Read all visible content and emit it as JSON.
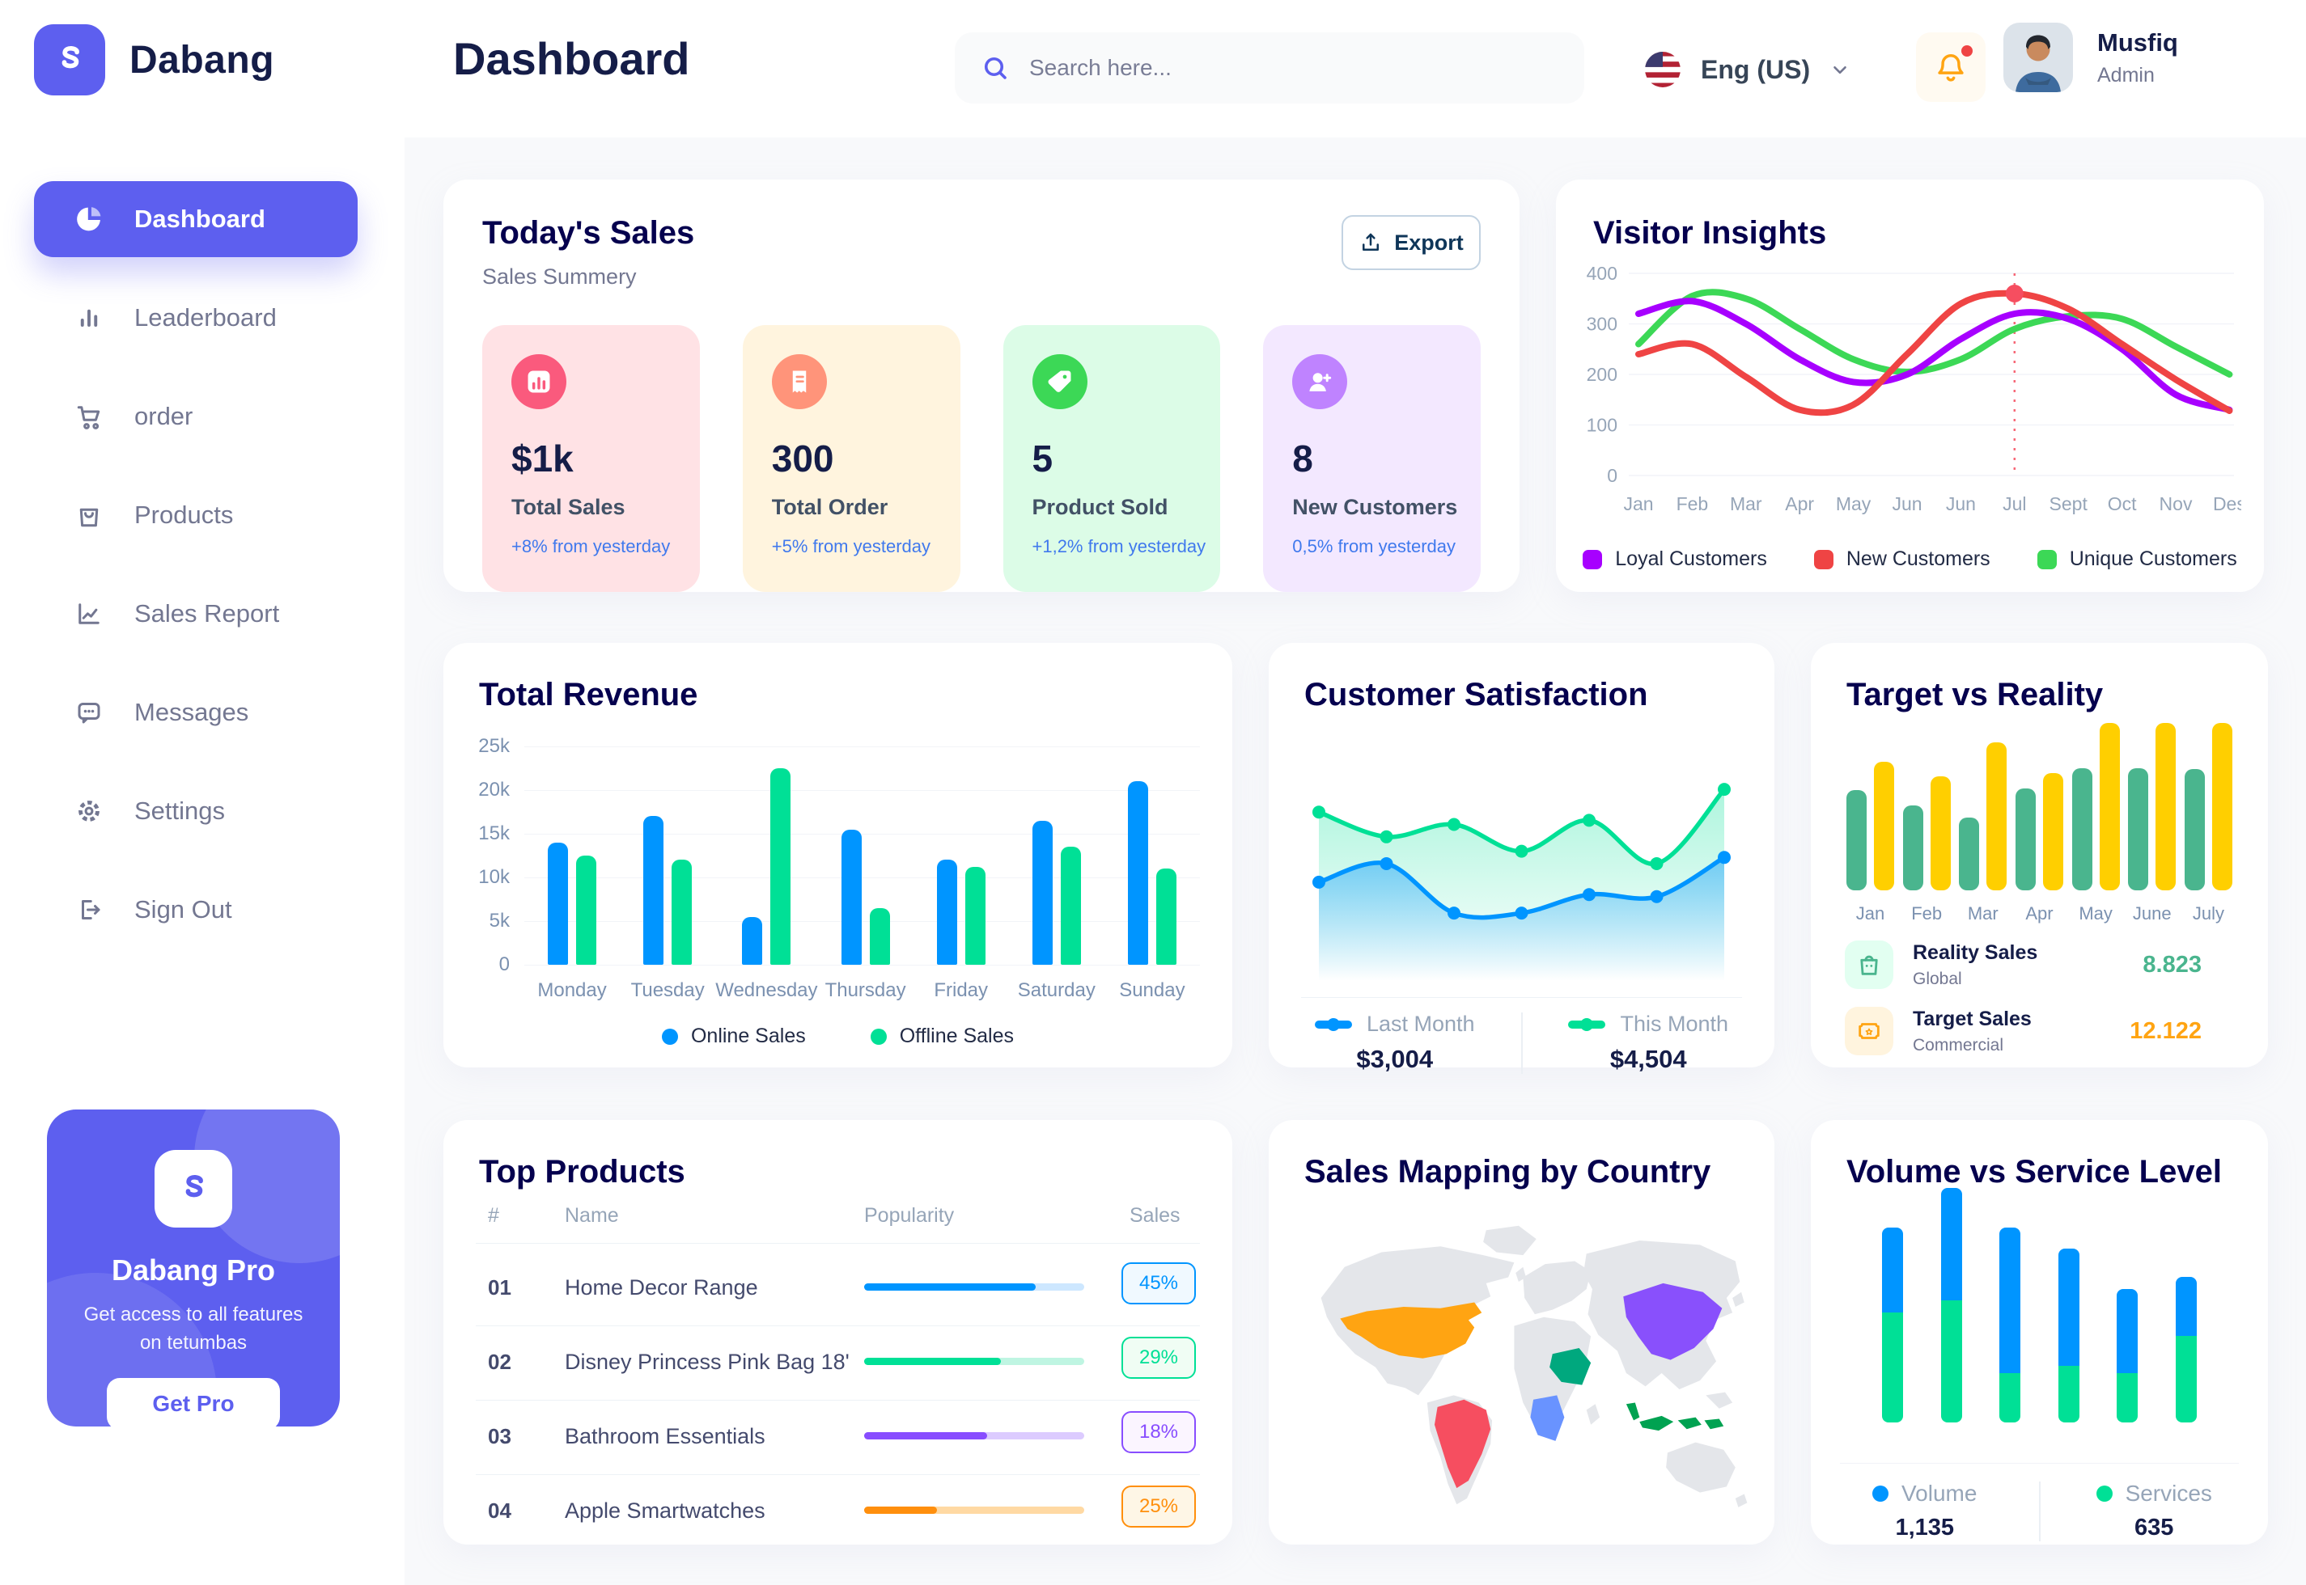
{
  "sidebar": {
    "logo_text": "Dabang",
    "items": [
      {
        "label": "Dashboard",
        "active": true
      },
      {
        "label": "Leaderboard"
      },
      {
        "label": "order"
      },
      {
        "label": "Products"
      },
      {
        "label": "Sales Report"
      },
      {
        "label": "Messages"
      },
      {
        "label": "Settings"
      },
      {
        "label": "Sign Out"
      }
    ],
    "promo": {
      "title": "Dabang Pro",
      "subtitle": "Get access to all features on tetumbas",
      "button": "Get Pro"
    }
  },
  "header": {
    "title": "Dashboard",
    "search_placeholder": "Search here...",
    "language": "Eng (US)",
    "user": {
      "name": "Musfiq",
      "role": "Admin"
    }
  },
  "today": {
    "title": "Today's Sales",
    "subtitle": "Sales Summery",
    "export_label": "Export",
    "cards": [
      {
        "value": "$1k",
        "label": "Total Sales",
        "delta": "+8% from yesterday",
        "bg": "#FFE2E5",
        "icon_bg": "#FA5A7D",
        "icon": "bar-chart"
      },
      {
        "value": "300",
        "label": "Total Order",
        "delta": "+5% from yesterday",
        "bg": "#FFF4DE",
        "icon_bg": "#FF947A",
        "icon": "receipt"
      },
      {
        "value": "5",
        "label": "Product Sold",
        "delta": "+1,2% from yesterday",
        "bg": "#DCFCE7",
        "icon_bg": "#3CD856",
        "icon": "tag"
      },
      {
        "value": "8",
        "label": "New Customers",
        "delta": "0,5% from yesterday",
        "bg": "#F3E8FF",
        "icon_bg": "#BF83FF",
        "icon": "user-plus"
      }
    ]
  },
  "visitor_insights": {
    "title": "Visitor Insights",
    "type": "line",
    "months": [
      "Jan",
      "Feb",
      "Mar",
      "Apr",
      "May",
      "Jun",
      "Jun",
      "Jul",
      "Sept",
      "Oct",
      "Nov",
      "Des"
    ],
    "y_ticks": [
      0,
      100,
      200,
      300,
      400
    ],
    "ylim": [
      0,
      400
    ],
    "marker": {
      "month_index": 7,
      "value": 360,
      "color": "#F64E60"
    },
    "series": [
      {
        "name": "Loyal Customers",
        "color": "#A700FF",
        "values": [
          320,
          345,
          300,
          230,
          185,
          200,
          270,
          320,
          310,
          250,
          160,
          130
        ]
      },
      {
        "name": "New Customers",
        "color": "#EF4444",
        "values": [
          240,
          260,
          195,
          130,
          140,
          240,
          340,
          360,
          330,
          260,
          190,
          128
        ]
      },
      {
        "name": "Unique Customers",
        "color": "#3CD856",
        "values": [
          260,
          355,
          350,
          290,
          230,
          205,
          230,
          290,
          315,
          310,
          255,
          200
        ]
      }
    ]
  },
  "total_revenue": {
    "title": "Total Revenue",
    "type": "bar",
    "days": [
      "Monday",
      "Tuesday",
      "Wednesday",
      "Thursday",
      "Friday",
      "Saturday",
      "Sunday"
    ],
    "y_ticks": [
      "0",
      "5k",
      "10k",
      "15k",
      "20k",
      "25k"
    ],
    "ylim": [
      0,
      25
    ],
    "series": [
      {
        "name": "Online Sales",
        "color": "#0095FF",
        "values": [
          14,
          17,
          5.5,
          15.5,
          12,
          16.5,
          21
        ]
      },
      {
        "name": "Offline Sales",
        "color": "#00E096",
        "values": [
          12.5,
          12,
          22.5,
          6.5,
          11.2,
          13.5,
          11
        ]
      }
    ]
  },
  "customer_satisfaction": {
    "title": "Customer Satisfaction",
    "type": "area",
    "series": [
      {
        "name": "Last Month",
        "color": "#0095FF",
        "total": "$3,004",
        "values": [
          42,
          51,
          27,
          27,
          36,
          35,
          54
        ]
      },
      {
        "name": "This Month",
        "color": "#00E096",
        "total": "$4,504",
        "values": [
          76,
          64,
          70,
          57,
          72,
          51,
          87
        ]
      }
    ]
  },
  "target_vs_reality": {
    "title": "Target vs Reality",
    "type": "bar",
    "months": [
      "Jan",
      "Feb",
      "Mar",
      "Apr",
      "May",
      "June",
      "July"
    ],
    "ylim": [
      0,
      14
    ],
    "series": [
      {
        "name": "Reality Sales",
        "tag": "Global",
        "color": "#4AB58E",
        "tile_bg": "#E2FFF1",
        "value_label": "8.823",
        "values": [
          8.3,
          7,
          6,
          8.4,
          10.1,
          10.1,
          10
        ]
      },
      {
        "name": "Target Sales",
        "tag": "Commercial",
        "color": "#FFCF00",
        "value_color": "#FFA412",
        "tile_bg": "#FFF4DE",
        "value_label": "12.122",
        "values": [
          10.6,
          9.4,
          12.2,
          9.7,
          13.8,
          13.8,
          13.8
        ]
      }
    ]
  },
  "top_products": {
    "title": "Top Products",
    "columns": [
      "#",
      "Name",
      "Popularity",
      "Sales"
    ],
    "rows": [
      {
        "id": "01",
        "name": "Home Decor Range",
        "popularity_pct": 78,
        "sales": "45%",
        "color": "#0095FF",
        "track": "#CDE7FF",
        "badge_bg": "#F0F9FF"
      },
      {
        "id": "02",
        "name": "Disney Princess Pink Bag 18'",
        "popularity_pct": 62,
        "sales": "29%",
        "color": "#00E096",
        "track": "#BFF5E2",
        "badge_bg": "#F0FDF4"
      },
      {
        "id": "03",
        "name": "Bathroom Essentials",
        "popularity_pct": 56,
        "sales": "18%",
        "color": "#884DFF",
        "track": "#DCCBFF",
        "badge_bg": "#FBF5FF"
      },
      {
        "id": "04",
        "name": "Apple Smartwatches",
        "popularity_pct": 33,
        "sales": "25%",
        "color": "#FF8F0D",
        "track": "#FFD9A3",
        "badge_bg": "#FEF6E6"
      }
    ]
  },
  "sales_mapping": {
    "title": "Sales Mapping by Country",
    "land_color": "#E4E6EA",
    "countries": [
      {
        "key": "usa",
        "name": "United States",
        "color": "#FFA412"
      },
      {
        "key": "brazil",
        "name": "Brazil",
        "color": "#F64E60"
      },
      {
        "key": "china",
        "name": "China",
        "color": "#8950FC"
      },
      {
        "key": "saudi",
        "name": "Saudi Arabia",
        "color": "#00A87E"
      },
      {
        "key": "drc",
        "name": "DR Congo",
        "color": "#6993FF"
      },
      {
        "key": "indonesia",
        "name": "Indonesia",
        "color": "#00A251"
      }
    ]
  },
  "volume_service": {
    "title": "Volume vs Service Level",
    "type": "stacked-bar",
    "bars": [
      {
        "volume": 36,
        "services": 47
      },
      {
        "volume": 48,
        "services": 52
      },
      {
        "volume": 62,
        "services": 21
      },
      {
        "volume": 50,
        "services": 24
      },
      {
        "volume": 36,
        "services": 21
      },
      {
        "volume": 25,
        "services": 37
      }
    ],
    "legend": [
      {
        "name": "Volume",
        "color": "#0095FF",
        "total": "1,135"
      },
      {
        "name": "Services",
        "color": "#00E096",
        "total": "635"
      }
    ]
  }
}
